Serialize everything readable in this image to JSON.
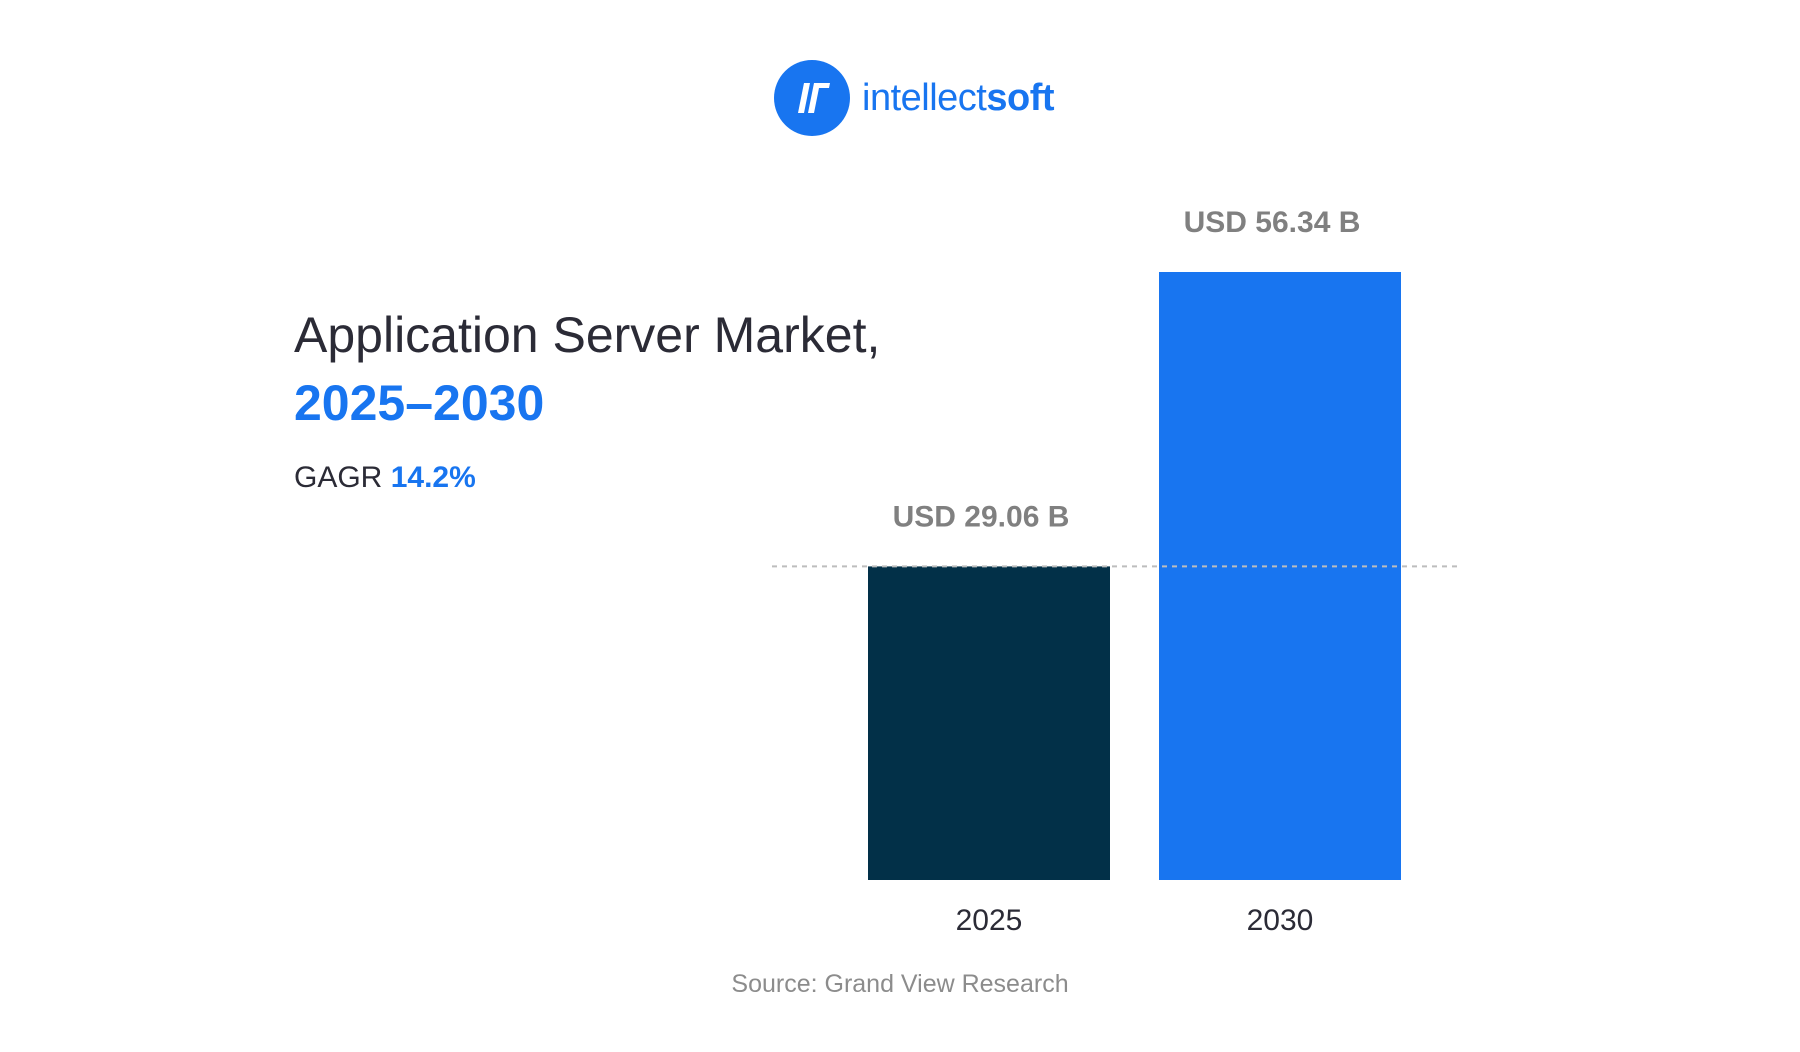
{
  "brand": {
    "name_light": "intellect",
    "name_bold": "soft",
    "color": "#1875F0"
  },
  "heading": {
    "line1": "Application Server Market,",
    "line2": "2025–2030",
    "cagr_label": "GAGR",
    "cagr_value": "14.2%"
  },
  "source": "Source: Grand View Research",
  "chart_data": {
    "type": "bar",
    "categories": [
      "2025",
      "2030"
    ],
    "values": [
      29.06,
      56.34
    ],
    "value_labels": [
      "USD 29.06 B",
      "USD 56.34 B"
    ],
    "colors": [
      "#023048",
      "#1875F0"
    ],
    "reference_line": {
      "value": 29.06,
      "style": "dashed",
      "color": "#BDBDBD"
    },
    "grid": false,
    "legend": "none",
    "ylim": [
      0,
      56.34
    ]
  }
}
